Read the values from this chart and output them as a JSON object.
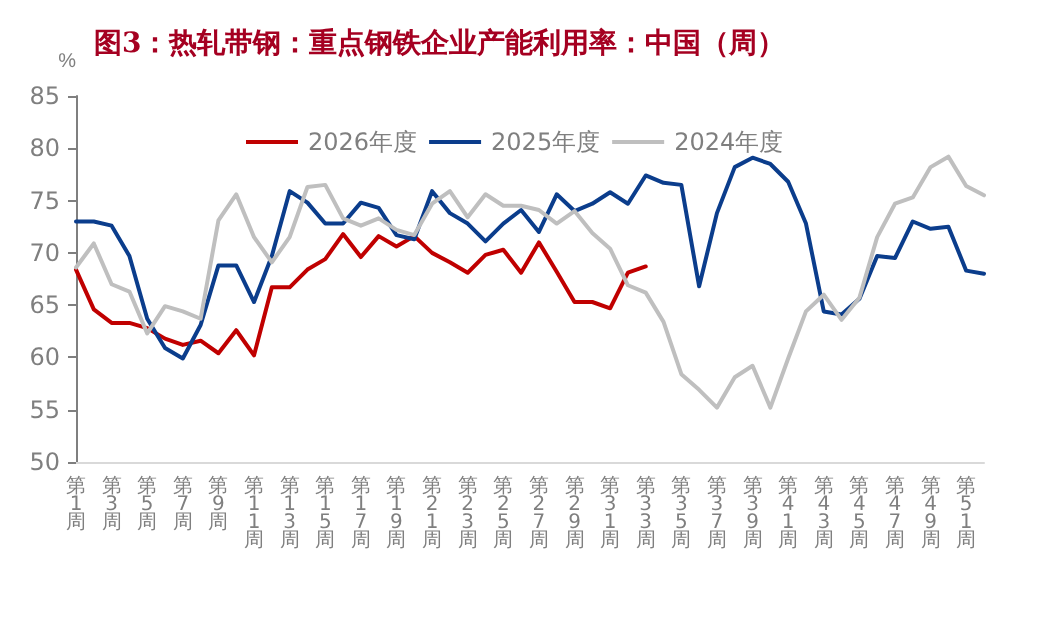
{
  "chart_data": {
    "type": "line",
    "title": "图3：热轧带钢：重点钢铁企业产能利用率：中国（周）",
    "ylabel": "%",
    "categories": [
      "第1周",
      null,
      "第3周",
      null,
      "第5周",
      null,
      "第7周",
      null,
      "第9周",
      null,
      "第11周",
      null,
      "第13周",
      null,
      "第15周",
      null,
      "第17周",
      null,
      "第19周",
      null,
      "第21周",
      null,
      "第23周",
      null,
      "第25周",
      null,
      "第27周",
      null,
      "第29周",
      null,
      "第31周",
      null,
      "第33周",
      null,
      "第35周",
      null,
      "第37周",
      null,
      "第39周",
      null,
      "第41周",
      null,
      "第43周",
      null,
      "第45周",
      null,
      "第47周",
      null,
      "第49周",
      null,
      "第51周",
      null
    ],
    "series": [
      {
        "name": "2026年度",
        "color": "#c00000",
        "values": [
          68.4,
          64.6,
          63.3,
          63.3,
          62.8,
          61.8,
          61.2,
          61.6,
          60.4,
          62.6,
          60.2,
          66.7,
          66.7,
          68.4,
          69.4,
          71.8,
          69.6,
          71.6,
          70.6,
          71.6,
          70.0,
          69.1,
          68.1,
          69.8,
          70.3,
          68.1,
          71.0,
          68.2,
          65.3,
          65.3,
          64.7,
          68.1,
          68.7,
          null,
          null,
          null,
          null,
          null,
          null,
          null,
          null,
          null,
          null,
          null,
          null,
          null,
          null,
          null,
          null,
          null,
          null,
          null
        ]
      },
      {
        "name": "2025年度",
        "color": "#0b3d8c",
        "values": [
          73.0,
          73.0,
          72.6,
          69.7,
          63.7,
          60.9,
          59.9,
          63.1,
          68.8,
          68.8,
          65.3,
          69.7,
          75.9,
          74.8,
          72.8,
          72.8,
          74.8,
          74.3,
          71.7,
          71.3,
          75.9,
          73.8,
          72.8,
          71.1,
          72.8,
          74.1,
          72.0,
          75.6,
          74.0,
          74.7,
          75.8,
          74.7,
          77.4,
          76.7,
          76.5,
          66.8,
          73.8,
          78.2,
          79.1,
          78.5,
          76.8,
          72.8,
          64.4,
          64.1,
          65.6,
          69.7,
          69.5,
          73.0,
          72.3,
          72.5,
          68.3,
          68.0
        ]
      },
      {
        "name": "2024年度",
        "color": "#bfbfbf",
        "values": [
          68.6,
          70.9,
          67.0,
          66.3,
          62.3,
          64.9,
          64.4,
          63.7,
          73.1,
          75.6,
          71.5,
          69.1,
          71.5,
          76.3,
          76.5,
          73.3,
          72.6,
          73.3,
          72.2,
          71.7,
          74.7,
          75.9,
          73.4,
          75.6,
          74.5,
          74.5,
          74.1,
          72.8,
          74.0,
          71.9,
          70.4,
          66.9,
          66.2,
          63.4,
          58.4,
          56.9,
          55.2,
          58.1,
          59.2,
          55.2,
          59.9,
          64.4,
          66.0,
          63.6,
          65.7,
          71.5,
          74.7,
          75.3,
          78.2,
          79.2,
          76.4,
          75.5
        ]
      }
    ],
    "ylim": [
      50,
      85
    ],
    "yticks": [
      50,
      55,
      60,
      65,
      70,
      75,
      80,
      85
    ],
    "grid": false,
    "legend": "top",
    "marker": "none",
    "line_style": "solid"
  }
}
